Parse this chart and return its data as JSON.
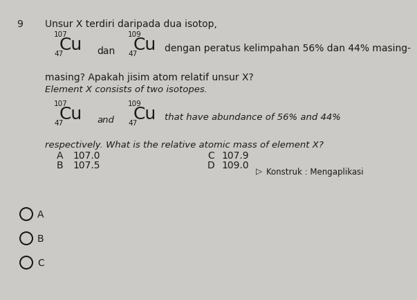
{
  "question_number": "9",
  "bg_color": "#cccac6",
  "text_color": "#1a1a1a",
  "question_malay_line1": "Unsur X terdiri daripada dua isotop,",
  "cu107_mass": "107",
  "cu107_atomic": "47",
  "cu109_mass": "109",
  "cu109_atomic": "47",
  "dan_text": "dan",
  "malay_line2": "dengan peratus kelimpahan 56% dan 44% masing-",
  "malay_line3": "masing? Apakah jisim atom relatif unsur X?",
  "english_italic_line1": "Element X consists of two isotopes.",
  "and_text": "and",
  "english_italic_line2": "that have abundance of 56% and 44%",
  "english_italic_line3": "respectively. What is the relative atomic mass of element X?",
  "opt_A_label": "A",
  "opt_A_value": "107.0",
  "opt_B_label": "B",
  "opt_B_value": "107.5",
  "opt_C_label": "C",
  "opt_C_value": "107.9",
  "opt_D_label": "D",
  "opt_D_value": "109.0",
  "konstruk_text": "Konstruk : Mengaplikasi",
  "choice_A": "A",
  "choice_B": "B",
  "choice_C": "C"
}
